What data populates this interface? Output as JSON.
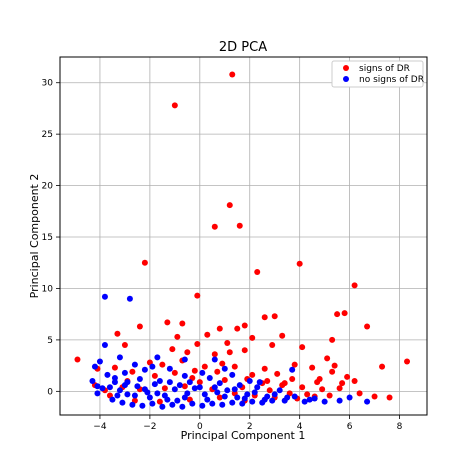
{
  "chart_data": {
    "type": "scatter",
    "title": "2D PCA",
    "xlabel": "Principal Component 1",
    "ylabel": "Principal Component 2",
    "xlim": [
      -5.6,
      9.1
    ],
    "ylim": [
      -2.3,
      32.5
    ],
    "xticks": [
      -4,
      -2,
      0,
      2,
      4,
      6,
      8
    ],
    "yticks": [
      0,
      5,
      10,
      15,
      20,
      25,
      30
    ],
    "grid": true,
    "legend_position": "top-right",
    "series": [
      {
        "name": "signs of DR",
        "color": "#ff0000",
        "points": [
          [
            1.3,
            30.8
          ],
          [
            -1.0,
            27.8
          ],
          [
            1.2,
            18.1
          ],
          [
            0.6,
            16.0
          ],
          [
            1.6,
            16.1
          ],
          [
            -2.2,
            12.5
          ],
          [
            4.0,
            12.4
          ],
          [
            2.3,
            11.6
          ],
          [
            6.2,
            10.3
          ],
          [
            -0.1,
            9.3
          ],
          [
            5.8,
            7.6
          ],
          [
            5.5,
            7.5
          ],
          [
            3.0,
            7.3
          ],
          [
            2.6,
            7.2
          ],
          [
            6.7,
            6.3
          ],
          [
            -1.3,
            6.7
          ],
          [
            -0.7,
            6.6
          ],
          [
            1.5,
            6.1
          ],
          [
            1.8,
            6.4
          ],
          [
            0.8,
            6.1
          ],
          [
            -2.4,
            6.3
          ],
          [
            -3.3,
            5.6
          ],
          [
            2.1,
            5.2
          ],
          [
            3.3,
            5.4
          ],
          [
            5.3,
            5.0
          ],
          [
            -0.9,
            5.3
          ],
          [
            0.3,
            5.5
          ],
          [
            1.1,
            4.7
          ],
          [
            -3.0,
            4.5
          ],
          [
            -0.1,
            4.6
          ],
          [
            4.1,
            4.3
          ],
          [
            2.9,
            4.5
          ],
          [
            1.8,
            4.0
          ],
          [
            -1.1,
            4.1
          ],
          [
            -0.5,
            3.8
          ],
          [
            0.6,
            3.6
          ],
          [
            1.2,
            3.8
          ],
          [
            -4.9,
            3.1
          ],
          [
            8.3,
            2.9
          ],
          [
            5.1,
            3.2
          ],
          [
            3.8,
            2.6
          ],
          [
            2.6,
            2.2
          ],
          [
            -2.0,
            2.8
          ],
          [
            -3.4,
            2.3
          ],
          [
            -1.5,
            2.6
          ],
          [
            4.5,
            2.3
          ],
          [
            5.4,
            2.5
          ],
          [
            7.3,
            2.4
          ],
          [
            1.4,
            2.4
          ],
          [
            -0.7,
            3.0
          ],
          [
            0.2,
            2.4
          ],
          [
            0.9,
            2.7
          ],
          [
            -2.7,
            1.9
          ],
          [
            -4.1,
            2.2
          ],
          [
            3.1,
            1.7
          ],
          [
            5.9,
            1.4
          ],
          [
            6.2,
            1.0
          ],
          [
            2.1,
            1.6
          ],
          [
            3.7,
            1.2
          ],
          [
            4.7,
            0.9
          ],
          [
            5.3,
            1.9
          ],
          [
            -1.8,
            1.5
          ],
          [
            -0.3,
            1.3
          ],
          [
            1.0,
            1.1
          ],
          [
            2.5,
            0.8
          ],
          [
            3.3,
            0.6
          ],
          [
            4.1,
            0.4
          ],
          [
            4.9,
            0.2
          ],
          [
            5.6,
            0.3
          ],
          [
            6.4,
            -0.2
          ],
          [
            7.0,
            -0.5
          ],
          [
            7.6,
            -0.6
          ],
          [
            5.2,
            -0.4
          ],
          [
            4.3,
            -0.3
          ],
          [
            3.6,
            -0.2
          ],
          [
            2.8,
            0.1
          ],
          [
            1.7,
            0.4
          ],
          [
            0.5,
            0.2
          ],
          [
            -0.6,
            0.5
          ],
          [
            -1.4,
            0.3
          ],
          [
            -2.4,
            0.2
          ],
          [
            -3.1,
            0.4
          ],
          [
            -3.8,
            0.1
          ],
          [
            0.0,
            0.9
          ],
          [
            1.4,
            -0.2
          ],
          [
            2.2,
            -0.4
          ],
          [
            3.0,
            -0.6
          ],
          [
            3.9,
            -0.7
          ],
          [
            4.6,
            -0.5
          ],
          [
            -2.9,
            1.0
          ],
          [
            -1.0,
            1.8
          ],
          [
            0.7,
            1.9
          ],
          [
            1.9,
            1.2
          ],
          [
            2.7,
            1.0
          ],
          [
            3.4,
            0.8
          ],
          [
            -4.2,
            0.6
          ],
          [
            -3.6,
            -0.4
          ],
          [
            -2.6,
            -0.9
          ],
          [
            -1.6,
            -1.0
          ],
          [
            -0.4,
            -0.8
          ],
          [
            0.8,
            -0.6
          ],
          [
            1.8,
            -0.9
          ],
          [
            4.8,
            1.2
          ],
          [
            5.7,
            0.8
          ],
          [
            -0.2,
            2.0
          ]
        ]
      },
      {
        "name": "no signs of DR",
        "color": "#0000ff",
        "points": [
          [
            -3.8,
            9.2
          ],
          [
            -2.8,
            9.0
          ],
          [
            -3.8,
            4.5
          ],
          [
            -4.0,
            2.9
          ],
          [
            -4.2,
            2.4
          ],
          [
            -3.2,
            3.3
          ],
          [
            -1.7,
            3.3
          ],
          [
            -0.6,
            3.1
          ],
          [
            0.6,
            3.1
          ],
          [
            1.0,
            2.2
          ],
          [
            3.7,
            2.1
          ],
          [
            -4.3,
            1.0
          ],
          [
            -4.1,
            0.5
          ],
          [
            -4.1,
            -0.2
          ],
          [
            -3.7,
            1.6
          ],
          [
            -3.4,
            1.3
          ],
          [
            -3.0,
            1.8
          ],
          [
            -2.6,
            2.6
          ],
          [
            -2.2,
            2.1
          ],
          [
            -1.9,
            2.4
          ],
          [
            -1.2,
            2.2
          ],
          [
            -0.6,
            1.5
          ],
          [
            0.1,
            1.8
          ],
          [
            0.4,
            1.3
          ],
          [
            1.3,
            1.6
          ],
          [
            2.0,
            1.0
          ],
          [
            2.4,
            0.9
          ],
          [
            -3.6,
            0.4
          ],
          [
            -3.2,
            0.1
          ],
          [
            -2.9,
            -0.3
          ],
          [
            -2.5,
            0.5
          ],
          [
            -2.1,
            -0.1
          ],
          [
            -1.8,
            0.7
          ],
          [
            -1.4,
            -0.4
          ],
          [
            -1.0,
            0.2
          ],
          [
            -0.6,
            -0.6
          ],
          [
            -0.2,
            0.3
          ],
          [
            0.2,
            -0.3
          ],
          [
            0.6,
            0.4
          ],
          [
            1.0,
            -0.5
          ],
          [
            1.4,
            0.2
          ],
          [
            1.8,
            -0.7
          ],
          [
            2.2,
            -0.1
          ],
          [
            2.6,
            -0.8
          ],
          [
            3.0,
            -0.3
          ],
          [
            3.4,
            -0.9
          ],
          [
            3.8,
            -0.5
          ],
          [
            4.2,
            -1.0
          ],
          [
            4.6,
            -0.7
          ],
          [
            5.0,
            -1.0
          ],
          [
            5.6,
            -0.9
          ],
          [
            6.0,
            -0.6
          ],
          [
            6.7,
            -1.0
          ],
          [
            -3.5,
            -0.8
          ],
          [
            -3.1,
            -1.1
          ],
          [
            -2.7,
            -1.3
          ],
          [
            -2.3,
            -1.4
          ],
          [
            -1.9,
            -1.2
          ],
          [
            -1.5,
            -1.5
          ],
          [
            -1.1,
            -1.3
          ],
          [
            -0.7,
            -1.5
          ],
          [
            -0.3,
            -1.2
          ],
          [
            0.1,
            -1.4
          ],
          [
            0.5,
            -1.2
          ],
          [
            0.9,
            -1.3
          ],
          [
            1.3,
            -1.1
          ],
          [
            1.7,
            -1.2
          ],
          [
            2.1,
            -1.0
          ],
          [
            2.5,
            -1.1
          ],
          [
            2.9,
            -0.9
          ],
          [
            -3.3,
            -0.4
          ],
          [
            -2.9,
            0.9
          ],
          [
            -2.4,
            1.2
          ],
          [
            -1.6,
            1.0
          ],
          [
            -1.2,
            0.9
          ],
          [
            -0.8,
            0.6
          ],
          [
            -0.4,
            0.9
          ],
          [
            0.8,
            0.8
          ],
          [
            1.6,
            0.6
          ],
          [
            -3.9,
            0.3
          ],
          [
            -2.2,
            0.2
          ],
          [
            -1.3,
            -0.8
          ],
          [
            -0.5,
            -0.2
          ],
          [
            0.3,
            -0.8
          ],
          [
            1.1,
            0.1
          ],
          [
            1.9,
            -0.3
          ],
          [
            2.7,
            -0.5
          ],
          [
            3.5,
            -0.6
          ],
          [
            4.4,
            -0.8
          ],
          [
            -2.0,
            -0.6
          ],
          [
            -3.0,
            0.6
          ],
          [
            -1.7,
            -0.2
          ],
          [
            0.0,
            0.4
          ],
          [
            0.7,
            -0.1
          ],
          [
            1.5,
            -0.6
          ],
          [
            -2.6,
            -0.4
          ],
          [
            -0.9,
            -0.9
          ],
          [
            2.3,
            0.4
          ],
          [
            3.2,
            0.1
          ],
          [
            -3.4,
            0.9
          ]
        ]
      }
    ]
  }
}
